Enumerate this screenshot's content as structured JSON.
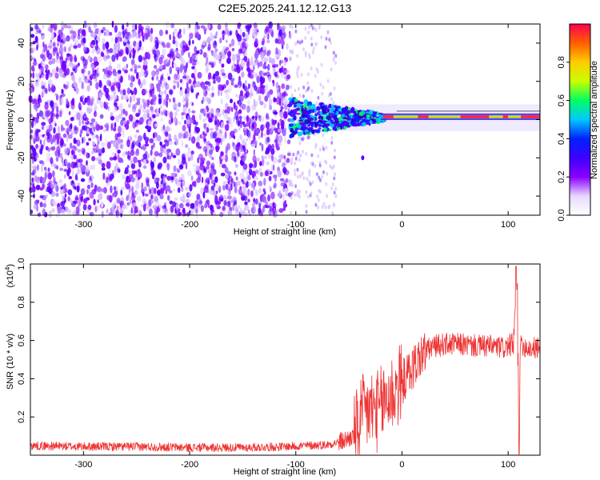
{
  "title": "C2E5.2025.241.12.12.G13",
  "chart_data": [
    {
      "type": "heatmap",
      "name": "spectrogram",
      "xlabel": "Height of straight line (km)",
      "ylabel": "Frequency (Hz)",
      "xlim": [
        -350,
        130
      ],
      "ylim": [
        -50,
        50
      ],
      "xticks": [
        -300,
        -200,
        -100,
        0,
        100
      ],
      "xtick_labels": [
        "-300",
        "-200",
        "-100",
        "0",
        "100"
      ],
      "yticks": [
        -40,
        -20,
        0,
        20,
        40
      ],
      "ytick_labels": [
        "-40",
        "-20",
        "0",
        "20",
        "40"
      ],
      "noise_region_km": [
        -350,
        -105
      ],
      "sparse_region_km": [
        -105,
        -62
      ],
      "signal_band_start_km": -105,
      "signal_line_hz": 1.5,
      "colorbar": {
        "label": "Normalized spectral amplitude",
        "range": [
          0,
          1
        ],
        "ticks": [
          0.0,
          0.2,
          0.4,
          0.6,
          0.8
        ],
        "tick_labels": [
          "0.0",
          "0.2",
          "0.4",
          "0.6",
          "0.8"
        ],
        "colors": [
          "#ffffff",
          "#e8d8ff",
          "#8a00ff",
          "#3c00ff",
          "#0022ff",
          "#00c8ff",
          "#00ff60",
          "#c8ff00",
          "#ffcc00",
          "#ff6000",
          "#ff0050"
        ]
      }
    },
    {
      "type": "line",
      "name": "snr",
      "xlabel": "Height of straight line (km)",
      "ylabel": "SNR (10 * v/v)",
      "scale_label": "(x10",
      "scale_exp": "4",
      "scale_close": ")",
      "xlim": [
        -350,
        130
      ],
      "ylim": [
        0,
        1.0
      ],
      "xticks": [
        -300,
        -200,
        -100,
        0,
        100
      ],
      "xtick_labels": [
        "-300",
        "-200",
        "-100",
        "0",
        "100"
      ],
      "yticks": [
        0.2,
        0.4,
        0.6,
        0.8,
        1.0
      ],
      "ytick_labels": [
        "0.2",
        "0.4",
        "0.6",
        "0.8",
        "1.0"
      ],
      "color": "#ee3333",
      "profile_x": [
        -350,
        -300,
        -250,
        -200,
        -150,
        -110,
        -70,
        -55,
        -45,
        -38,
        -30,
        -22,
        -15,
        -8,
        0,
        8,
        15,
        22,
        30,
        40,
        55,
        70,
        85,
        95,
        105,
        108,
        110,
        112,
        115,
        122,
        130
      ],
      "profile_y": [
        0.05,
        0.045,
        0.045,
        0.04,
        0.04,
        0.045,
        0.055,
        0.075,
        0.1,
        0.2,
        0.24,
        0.23,
        0.3,
        0.33,
        0.38,
        0.44,
        0.5,
        0.54,
        0.57,
        0.58,
        0.58,
        0.57,
        0.57,
        0.56,
        0.58,
        0.9,
        0.25,
        0.6,
        0.57,
        0.56,
        0.56
      ]
    }
  ]
}
